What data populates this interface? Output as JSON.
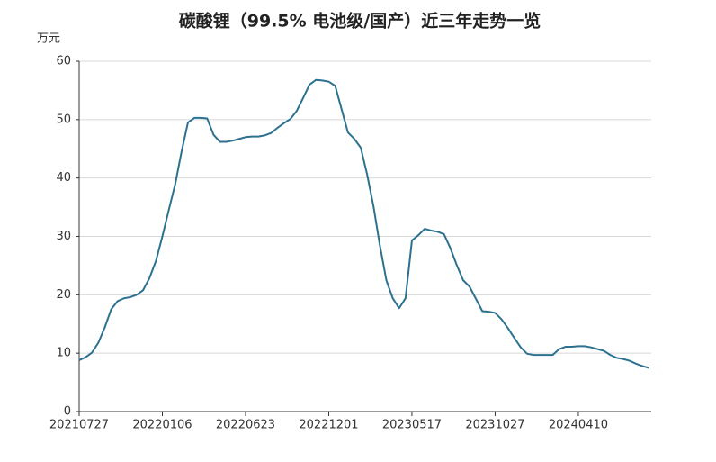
{
  "chart_data": {
    "type": "line",
    "title": "碳酸锂（99.5% 电池级/国产）近三年走势一览",
    "y_unit": "万元",
    "categories": [
      "20210727",
      null,
      null,
      null,
      null,
      null,
      null,
      null,
      null,
      null,
      null,
      null,
      null,
      "20220106",
      null,
      null,
      null,
      null,
      null,
      null,
      null,
      null,
      null,
      null,
      null,
      null,
      "20220623",
      null,
      null,
      null,
      null,
      null,
      null,
      null,
      null,
      null,
      null,
      null,
      null,
      "20221201",
      null,
      null,
      null,
      null,
      null,
      null,
      null,
      null,
      null,
      null,
      null,
      null,
      "20230517",
      null,
      null,
      null,
      null,
      null,
      null,
      null,
      null,
      null,
      null,
      null,
      null,
      "20231027",
      null,
      null,
      null,
      null,
      null,
      null,
      null,
      null,
      null,
      null,
      null,
      null,
      "20240410",
      null,
      null,
      null,
      null,
      null,
      null,
      null,
      null,
      null,
      null,
      null
    ],
    "series": [
      {
        "color": "#2c7190",
        "values": [
          8.8,
          9.3,
          10.1,
          11.8,
          14.4,
          17.5,
          18.9,
          19.4,
          19.6,
          20,
          20.8,
          22.9,
          25.8,
          30,
          34.5,
          38.9,
          44.5,
          49.5,
          50.3,
          50.3,
          50.2,
          47.4,
          46.2,
          46.2,
          46.4,
          46.7,
          47,
          47.1,
          47.1,
          47.3,
          47.7,
          48.6,
          49.4,
          50.1,
          51.5,
          53.7,
          56,
          56.8,
          56.7,
          56.5,
          55.8,
          51.8,
          47.8,
          46.7,
          45.2,
          40.6,
          35.1,
          28.4,
          22.5,
          19.4,
          17.7,
          19.4,
          29.3,
          30.2,
          31.3,
          31,
          30.8,
          30.4,
          28,
          25.1,
          22.5,
          21.4,
          19.3,
          17.2,
          17.1,
          16.9,
          15.8,
          14.3,
          12.6,
          11,
          9.9,
          9.7,
          9.7,
          9.7,
          9.7,
          10.7,
          11.1,
          11.1,
          11.2,
          11.2,
          11,
          10.7,
          10.4,
          9.7,
          9.2,
          9,
          8.7,
          8.2,
          7.8,
          7.5
        ]
      }
    ],
    "ylim": [
      0,
      60
    ],
    "yticks": [
      0,
      10,
      20,
      30,
      40,
      50,
      60
    ],
    "grid": true
  }
}
